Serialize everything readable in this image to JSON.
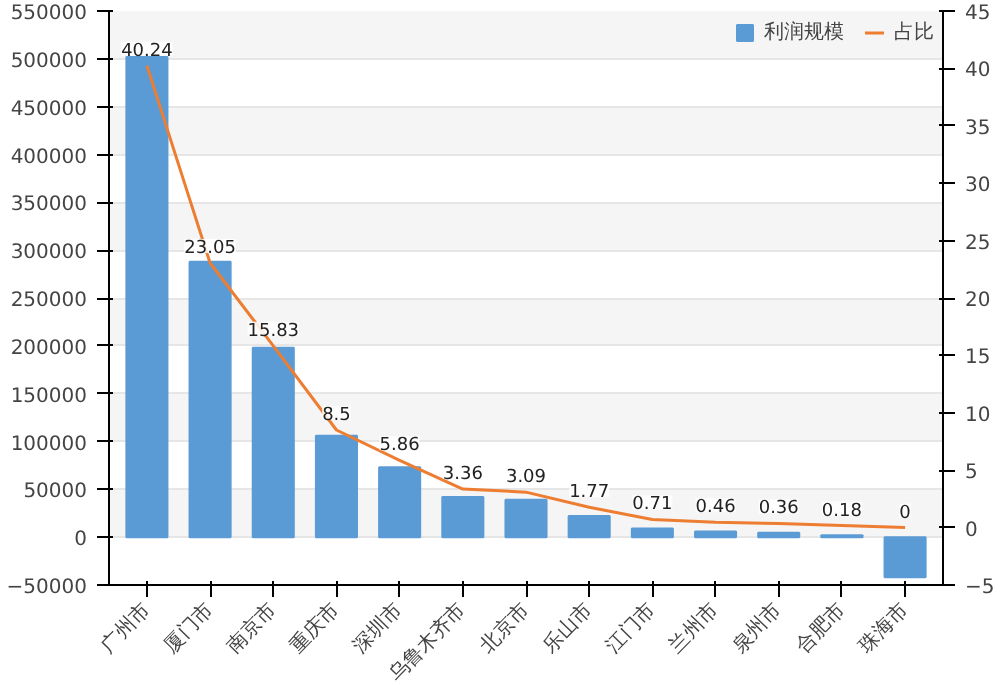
{
  "chart_data": {
    "type": "bar",
    "categories": [
      "广州市",
      "厦门市",
      "南京市",
      "重庆市",
      "深圳市",
      "乌鲁木齐市",
      "北京市",
      "乐山市",
      "江门市",
      "兰州市",
      "泉州市",
      "合肥市",
      "珠海市"
    ],
    "series": [
      {
        "name": "利润规模",
        "color": "#5b9bd5",
        "values": [
          502000,
          288000,
          198000,
          106000,
          73000,
          42000,
          39000,
          22000,
          9000,
          6000,
          4500,
          2000,
          -42000
        ]
      },
      {
        "name": "占比",
        "type": "line",
        "axis": "y2",
        "color": "#ed7d31",
        "values": [
          40.24,
          23.05,
          15.83,
          8.5,
          5.86,
          3.36,
          3.09,
          1.77,
          0.71,
          0.46,
          0.36,
          0.18,
          0
        ],
        "value_labels": [
          "40.24",
          "23.05",
          "15.83",
          "8.5",
          "5.86",
          "3.36",
          "3.09",
          "1.77",
          "0.71",
          "0.46",
          "0.36",
          "0.18",
          "0"
        ]
      }
    ],
    "ylim": [
      -50000,
      550000
    ],
    "yticks": [
      -50000,
      0,
      50000,
      100000,
      150000,
      200000,
      250000,
      300000,
      350000,
      400000,
      450000,
      500000,
      550000
    ],
    "y2lim": [
      -5,
      45
    ],
    "y2ticks": [
      -5,
      0,
      5,
      10,
      15,
      20,
      25,
      30,
      35,
      40,
      45
    ],
    "grid": "y",
    "legend": "top right"
  }
}
